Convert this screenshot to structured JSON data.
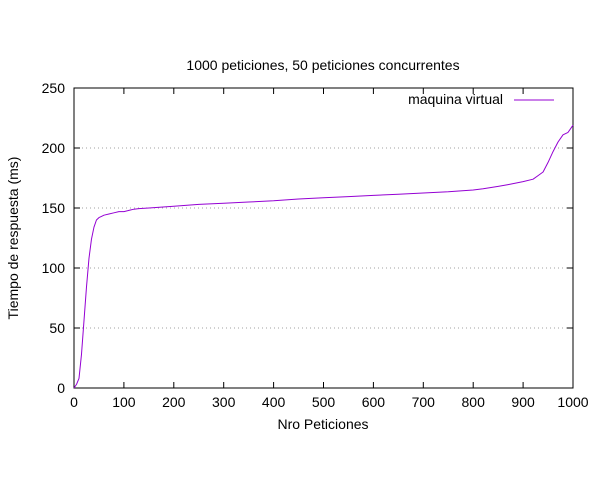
{
  "chart_data": {
    "type": "line",
    "title": "1000 peticiones, 50 peticiones concurrentes",
    "xlabel": "Nro Peticiones",
    "ylabel": "Tiempo de respuesta (ms)",
    "xlim": [
      0,
      1000
    ],
    "ylim": [
      0,
      250
    ],
    "xticks": [
      0,
      100,
      200,
      300,
      400,
      500,
      600,
      700,
      800,
      900,
      1000
    ],
    "yticks": [
      0,
      50,
      100,
      150,
      200,
      250
    ],
    "grid": "horizontal-dotted",
    "legend_position": "top-right",
    "series": [
      {
        "name": "maquina virtual",
        "color": "#9400d3",
        "x": [
          0,
          5,
          10,
          15,
          20,
          25,
          30,
          35,
          40,
          45,
          50,
          55,
          60,
          70,
          80,
          90,
          100,
          110,
          120,
          130,
          150,
          200,
          250,
          300,
          350,
          400,
          450,
          500,
          550,
          600,
          650,
          700,
          750,
          800,
          820,
          850,
          870,
          900,
          920,
          930,
          940,
          950,
          960,
          970,
          980,
          990,
          995,
          1000
        ],
        "y": [
          0,
          3,
          8,
          28,
          56,
          84,
          108,
          124,
          134,
          140,
          142,
          143,
          144,
          145,
          146,
          147,
          147,
          148,
          149,
          149.5,
          150,
          151.5,
          153,
          154,
          155,
          156,
          157.5,
          158.5,
          159.5,
          160.5,
          161.5,
          162.5,
          163.5,
          165,
          166,
          168,
          169.5,
          172,
          174,
          177,
          180,
          188,
          197,
          205,
          211,
          213,
          216,
          219
        ]
      }
    ]
  }
}
